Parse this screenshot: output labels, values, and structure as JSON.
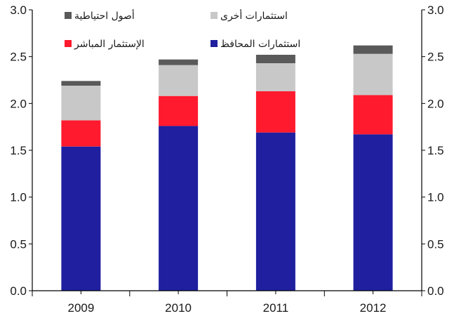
{
  "chart_data": {
    "type": "bar",
    "stacked": true,
    "categories": [
      "2009",
      "2010",
      "2011",
      "2012"
    ],
    "series": [
      {
        "name": "استثمارات المحافظ",
        "color": "#1f1fa0",
        "values": [
          1.54,
          1.76,
          1.69,
          1.67
        ]
      },
      {
        "name": "الإستثمار المباشر",
        "color": "#ff1a2e",
        "values": [
          0.28,
          0.32,
          0.44,
          0.42
        ]
      },
      {
        "name": "استثمارات أخرى",
        "color": "#c8c8c8",
        "values": [
          0.37,
          0.33,
          0.3,
          0.44
        ]
      },
      {
        "name": "أصول احتياطية",
        "color": "#5a5a5a",
        "values": [
          0.05,
          0.06,
          0.09,
          0.09
        ]
      }
    ],
    "ylim": [
      0,
      3.0
    ],
    "yticks": [
      "0.0",
      "0.5",
      "1.0",
      "1.5",
      "2.0",
      "2.5",
      "3.0"
    ],
    "y_axis_left": true,
    "y_axis_right": true,
    "grid": false,
    "legend_position": "top"
  }
}
